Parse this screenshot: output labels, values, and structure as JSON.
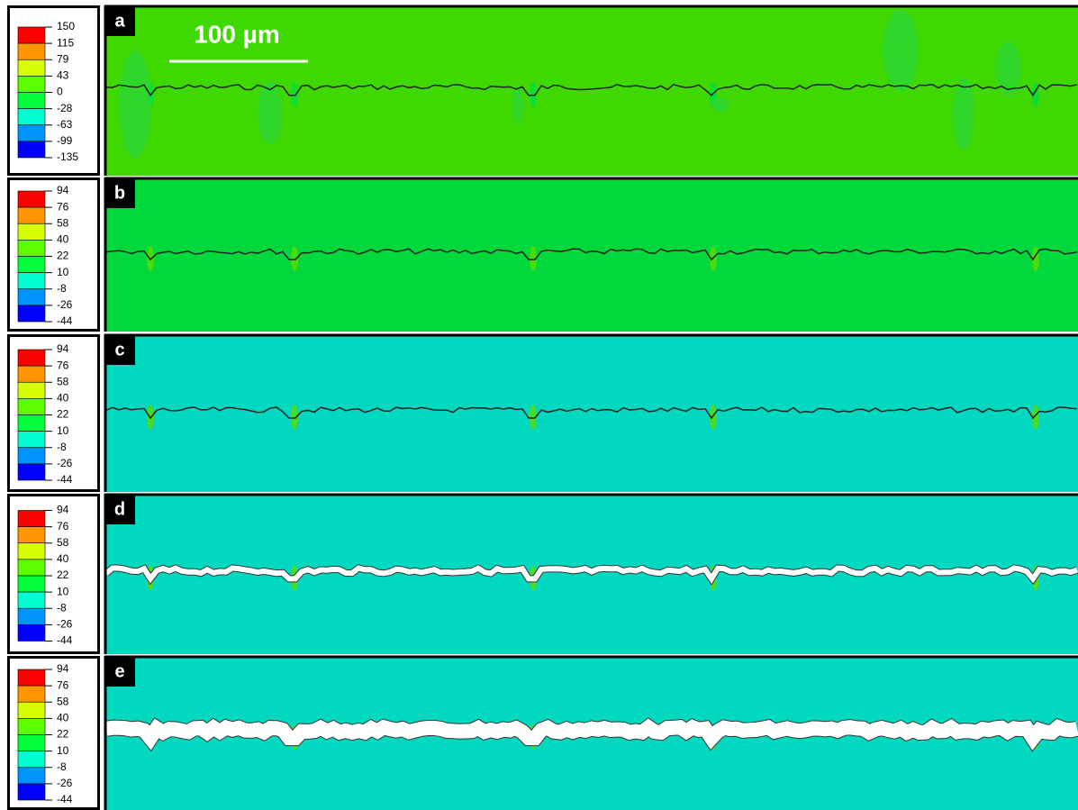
{
  "scale_bar": "100 µm",
  "panels": [
    {
      "label": "a",
      "legend": [
        150,
        115,
        79,
        43,
        0,
        -28,
        -63,
        -99,
        -135
      ]
    },
    {
      "label": "b",
      "legend": [
        94,
        76,
        58,
        40,
        22,
        10,
        -8,
        -26,
        -44
      ]
    },
    {
      "label": "c",
      "legend": [
        94,
        76,
        58,
        40,
        22,
        10,
        -8,
        -26,
        -44
      ]
    },
    {
      "label": "d",
      "legend": [
        94,
        76,
        58,
        40,
        22,
        10,
        -8,
        -26,
        -44
      ]
    },
    {
      "label": "e",
      "legend": [
        94,
        76,
        58,
        40,
        22,
        10,
        -8,
        -26,
        -44
      ]
    }
  ]
}
